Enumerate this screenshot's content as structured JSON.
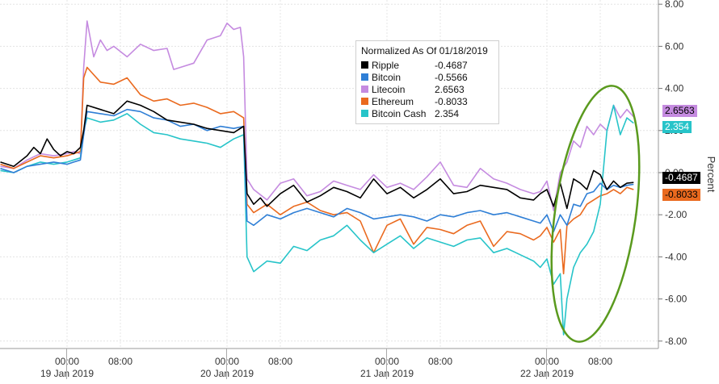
{
  "chart_data": {
    "type": "line",
    "title": "",
    "xlabel": "",
    "ylabel": "Percent",
    "ylim": [
      -8,
      8
    ],
    "yticks": [
      "8.00",
      "6.00",
      "4.00",
      "2.00",
      "0.00",
      "-2.00",
      "-4.00",
      "-6.00",
      "-8.00"
    ],
    "x_time_labels": [
      {
        "time": "00:00",
        "date": "19 Jan 2019",
        "hour": 0
      },
      {
        "time": "08:00",
        "date": "",
        "hour": 8
      },
      {
        "time": "00:00",
        "date": "20 Jan 2019",
        "hour": 24
      },
      {
        "time": "08:00",
        "date": "",
        "hour": 32
      },
      {
        "time": "00:00",
        "date": "21 Jan 2019",
        "hour": 48
      },
      {
        "time": "08:00",
        "date": "",
        "hour": 56
      },
      {
        "time": "00:00",
        "date": "22 Jan 2019",
        "hour": 72
      },
      {
        "time": "08:00",
        "date": "",
        "hour": 80
      }
    ],
    "x_unit": "hours since 19 Jan 2019 00:00",
    "legend": {
      "title": "Normalized As Of 01/18/2019",
      "placement": "top-center"
    },
    "series": [
      {
        "name": "Ripple",
        "value_label": "-0.4687",
        "color": "#000000",
        "x": [
          -10,
          -8,
          -6,
          -5,
          -4,
          -3,
          -2,
          -1,
          0,
          1,
          2,
          2.5,
          3,
          5,
          7,
          9,
          11,
          13,
          15,
          17,
          19,
          21,
          23,
          25,
          26.5,
          27,
          28,
          29,
          30,
          32,
          34,
          36,
          38,
          40,
          42,
          44,
          46,
          48,
          50,
          52,
          54,
          56,
          58,
          60,
          62,
          64,
          66,
          68,
          70,
          71,
          72,
          73,
          74,
          75,
          76,
          77,
          78,
          79,
          80,
          81,
          82,
          83,
          84,
          85
        ],
        "y": [
          0.5,
          0.3,
          0.8,
          1.2,
          0.9,
          1.6,
          1.1,
          0.8,
          1.0,
          0.9,
          1.2,
          2.0,
          3.2,
          3.0,
          2.8,
          3.4,
          3.2,
          2.9,
          2.5,
          2.4,
          2.3,
          2.1,
          2.0,
          1.9,
          2.2,
          -1.0,
          -1.5,
          -1.2,
          -1.6,
          -1.0,
          -0.6,
          -1.4,
          -1.1,
          -0.7,
          -0.9,
          -1.2,
          -0.3,
          -1.0,
          -0.7,
          -1.2,
          -0.8,
          -0.3,
          -1.0,
          -0.9,
          -0.6,
          -0.7,
          -0.8,
          -1.2,
          -1.3,
          -1.0,
          -0.8,
          -1.6,
          -0.5,
          -1.7,
          -0.3,
          -0.5,
          -0.8,
          0.1,
          -0.1,
          -0.8,
          -0.4,
          -0.7,
          -0.5,
          -0.4687
        ]
      },
      {
        "name": "Bitcoin",
        "value_label": "-0.5566",
        "color": "#2f7fd6",
        "x": [
          -10,
          -8,
          -6,
          -4,
          -2,
          0,
          1,
          2,
          2.5,
          3,
          5,
          7,
          9,
          11,
          13,
          15,
          17,
          19,
          21,
          23,
          25,
          26.5,
          27,
          28,
          30,
          32,
          34,
          36,
          38,
          40,
          42,
          44,
          46,
          48,
          50,
          52,
          54,
          56,
          58,
          60,
          62,
          64,
          66,
          68,
          70,
          71,
          72,
          73,
          74,
          75,
          76,
          77,
          78,
          79,
          80,
          81,
          82,
          83,
          84,
          85
        ],
        "y": [
          0.2,
          0.0,
          0.3,
          0.4,
          0.5,
          0.4,
          0.5,
          0.6,
          1.8,
          2.9,
          2.8,
          2.7,
          3.0,
          2.9,
          2.6,
          2.5,
          2.2,
          2.3,
          2.0,
          2.2,
          2.1,
          2.2,
          -2.3,
          -2.5,
          -2.0,
          -2.2,
          -1.9,
          -1.7,
          -1.9,
          -2.1,
          -1.7,
          -1.9,
          -2.2,
          -2.1,
          -2.0,
          -2.1,
          -2.3,
          -2.0,
          -2.1,
          -1.9,
          -1.8,
          -2.0,
          -1.9,
          -2.1,
          -2.3,
          -2.4,
          -2.0,
          -2.8,
          -2.0,
          -2.5,
          -1.5,
          -1.6,
          -1.0,
          -0.9,
          -0.5,
          -0.8,
          -0.6,
          -0.7,
          -0.6,
          -0.5566
        ]
      },
      {
        "name": "Litecoin",
        "value_label": "2.6563",
        "color": "#c58be0",
        "x": [
          -10,
          -8,
          -6,
          -4,
          -2,
          0,
          1,
          2,
          2.5,
          3,
          4,
          5,
          6,
          7,
          9,
          11,
          13,
          15,
          16,
          17,
          19,
          21,
          23,
          24,
          25,
          26,
          26.5,
          27,
          28,
          30,
          32,
          34,
          36,
          38,
          40,
          42,
          44,
          46,
          48,
          50,
          52,
          54,
          56,
          58,
          60,
          62,
          64,
          66,
          68,
          70,
          71,
          72,
          73,
          74,
          75,
          76,
          77,
          78,
          79,
          80,
          81,
          82,
          83,
          84,
          85
        ],
        "y": [
          0.3,
          0.2,
          0.6,
          0.9,
          0.8,
          0.9,
          1.0,
          0.9,
          5.0,
          7.2,
          5.5,
          6.3,
          5.8,
          6.0,
          5.5,
          6.1,
          5.8,
          5.9,
          4.9,
          5.0,
          5.2,
          6.3,
          6.5,
          7.1,
          6.8,
          6.9,
          5.5,
          -0.3,
          -0.8,
          -1.3,
          -0.5,
          -0.3,
          -1.1,
          -0.9,
          -0.4,
          -0.6,
          -0.8,
          -0.1,
          -0.7,
          -0.5,
          -0.8,
          -0.2,
          0.5,
          -0.6,
          -0.7,
          0.2,
          -0.3,
          -0.5,
          -0.8,
          -1.0,
          -0.9,
          -0.4,
          -1.8,
          0.0,
          0.5,
          1.5,
          1.2,
          2.2,
          1.8,
          2.3,
          2.0,
          3.2,
          2.6,
          3.0,
          2.6563
        ]
      },
      {
        "name": "Ethereum",
        "value_label": "-0.8033",
        "color": "#ea6a1f",
        "x": [
          -10,
          -8,
          -6,
          -4,
          -2,
          0,
          1,
          2,
          2.5,
          3,
          5,
          7,
          9,
          11,
          13,
          15,
          17,
          19,
          21,
          23,
          25,
          26.5,
          27,
          28,
          30,
          32,
          34,
          36,
          38,
          40,
          42,
          44,
          46,
          48,
          50,
          52,
          54,
          56,
          58,
          60,
          62,
          64,
          66,
          68,
          70,
          71,
          72,
          73,
          74,
          74.5,
          75,
          76,
          77,
          78,
          79,
          80,
          81,
          82,
          83,
          84,
          85
        ],
        "y": [
          0.4,
          0.2,
          0.5,
          0.8,
          0.7,
          0.8,
          0.9,
          1.0,
          4.5,
          5.0,
          4.3,
          4.2,
          4.5,
          3.7,
          3.4,
          3.5,
          3.2,
          3.3,
          3.1,
          2.8,
          2.9,
          2.6,
          -1.5,
          -1.9,
          -1.5,
          -2.0,
          -1.6,
          -1.4,
          -1.8,
          -2.0,
          -1.9,
          -2.3,
          -3.8,
          -2.5,
          -2.2,
          -3.4,
          -2.6,
          -2.7,
          -2.9,
          -2.5,
          -2.3,
          -3.5,
          -2.8,
          -2.9,
          -3.2,
          -3.0,
          -2.6,
          -3.3,
          -2.7,
          -4.8,
          -2.5,
          -2.2,
          -2.0,
          -1.5,
          -1.3,
          -1.1,
          -1.0,
          -0.8,
          -1.0,
          -0.7,
          -0.8033
        ]
      },
      {
        "name": "Bitcoin Cash",
        "value_label": "2.354",
        "color": "#27c4c9",
        "x": [
          -10,
          -8,
          -6,
          -4,
          -2,
          0,
          1,
          2,
          2.5,
          3,
          5,
          7,
          9,
          11,
          13,
          15,
          17,
          19,
          21,
          23,
          25,
          26.5,
          27,
          28,
          30,
          32,
          34,
          36,
          38,
          40,
          42,
          44,
          46,
          48,
          50,
          52,
          54,
          56,
          58,
          60,
          62,
          64,
          66,
          68,
          70,
          71,
          72,
          73,
          74,
          74.5,
          75,
          76,
          77,
          78,
          79,
          80,
          81,
          82,
          83,
          84,
          85
        ],
        "y": [
          0.1,
          0.0,
          0.3,
          0.5,
          0.4,
          0.5,
          0.6,
          0.7,
          2.0,
          2.6,
          2.4,
          2.5,
          2.8,
          2.3,
          1.9,
          1.8,
          1.6,
          1.5,
          1.4,
          1.2,
          1.6,
          1.8,
          -4.0,
          -4.7,
          -4.2,
          -4.3,
          -3.5,
          -3.7,
          -3.2,
          -3.0,
          -2.5,
          -3.2,
          -3.8,
          -3.4,
          -3.0,
          -3.6,
          -3.1,
          -3.3,
          -3.5,
          -3.2,
          -3.1,
          -3.8,
          -3.6,
          -3.9,
          -4.2,
          -4.5,
          -4.1,
          -5.3,
          -4.8,
          -7.7,
          -6.0,
          -4.5,
          -3.8,
          -3.4,
          -2.8,
          -1.5,
          2.0,
          3.2,
          1.8,
          2.6,
          2.354
        ]
      }
    ]
  }
}
